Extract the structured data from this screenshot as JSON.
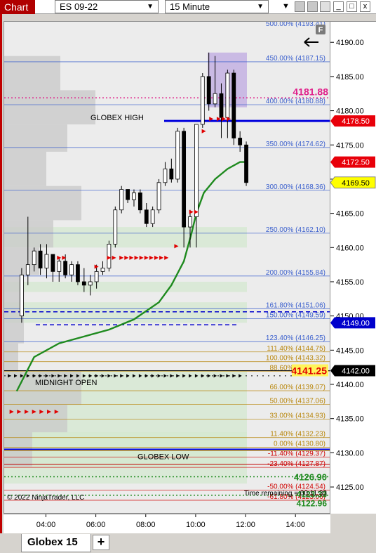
{
  "window": {
    "tag": "Chart",
    "instrument": "ES 09-22",
    "interval": "15 Minute",
    "dropdown_arrow": "▼",
    "menu_arrow": "▼",
    "controls": {
      "minimize": "_",
      "restore": "□",
      "close": "x"
    }
  },
  "tabs": [
    {
      "label": "Globex 15"
    }
  ],
  "add_tab_label": "+",
  "colors": {
    "background": "#ececec",
    "volume_profile": "#c8c8c8",
    "value_area": "#d4e8d0",
    "vwap": "#1e8a1e",
    "globex_high": "#0000dd",
    "fib_blue": "#3a5fcd",
    "fib_gold": "#b8860b",
    "fib_red": "#d00000"
  },
  "chart": {
    "header_label": "500.00% (4193.41)",
    "data_box_icon": "F",
    "back_arrow_icon": "arrow-left-icon",
    "copyright": "© 2022 NinjaTrader, LLC",
    "time_remaining": "Time remaining = 00:11:33",
    "last_price_label": "4141.25",
    "pink_price_label": "4181.88",
    "lower_green_label": "4126.90",
    "bottom_green_label_a": "4123.33",
    "bottom_green_label_b": "4122.96"
  },
  "chart_data": {
    "type": "candlestick",
    "instrument": "ES 09-22",
    "interval": "15 Minute",
    "ylim": [
      4121,
      4193
    ],
    "y_ticks": [
      4125,
      4130,
      4135,
      4140,
      4145,
      4150,
      4155,
      4160,
      4165,
      4170,
      4175,
      4180,
      4185,
      4190
    ],
    "y_tick_labels": [
      "4125.00",
      "4130.00",
      "4135.00",
      "4140.00",
      "4145.00",
      "4150.00",
      "4155.00",
      "4160.00",
      "4165.00",
      "4170.00",
      "4175.00",
      "4180.00",
      "4185.00",
      "4190.00"
    ],
    "x_ticks": [
      "04:00",
      "06:00",
      "08:00",
      "10:00",
      "12:00",
      "14:00"
    ],
    "x_tick_hours": [
      4,
      6,
      8,
      10,
      12,
      14
    ],
    "xlim_hours": [
      2.3,
      15.4
    ],
    "price_badges": [
      {
        "label": "4178.50",
        "value": 4178.5,
        "bg": "#e8000a",
        "fg": "#ffffff"
      },
      {
        "label": "4172.50",
        "value": 4172.5,
        "bg": "#e8000a",
        "fg": "#ffffff"
      },
      {
        "label": "4169.50",
        "value": 4169.5,
        "bg": "#ffff00",
        "fg": "#000000"
      },
      {
        "label": "4149.00",
        "value": 4149.0,
        "bg": "#0000cc",
        "fg": "#ffffff"
      },
      {
        "label": "4142.00",
        "value": 4142.0,
        "bg": "#000000",
        "fg": "#ffffff"
      }
    ],
    "levels": [
      {
        "label": "500.00% (4193.41)",
        "price": 4193.41,
        "color": "#3a5fcd"
      },
      {
        "label": "450.00% (4187.15)",
        "price": 4187.15,
        "color": "#3a5fcd"
      },
      {
        "label": "400.00% (4180.88)",
        "price": 4180.88,
        "color": "#3a5fcd"
      },
      {
        "label": "350.00% (4174.62)",
        "price": 4174.62,
        "color": "#3a5fcd"
      },
      {
        "label": "300.00% (4168.36)",
        "price": 4168.36,
        "color": "#3a5fcd"
      },
      {
        "label": "250.00% (4162.10)",
        "price": 4162.1,
        "color": "#3a5fcd"
      },
      {
        "label": "200.00% (4155.84)",
        "price": 4155.84,
        "color": "#3a5fcd"
      },
      {
        "label": "161.80% (4151.06)",
        "price": 4151.06,
        "color": "#3a5fcd"
      },
      {
        "label": "150.00% (4149.59)",
        "price": 4149.59,
        "color": "#3a5fcd"
      },
      {
        "label": "123.40% (4146.25)",
        "price": 4146.25,
        "color": "#3a5fcd"
      },
      {
        "label": "111.40% (4144.75)",
        "price": 4144.75,
        "color": "#b8860b"
      },
      {
        "label": "100.00% (4143.32)",
        "price": 4143.32,
        "color": "#b8860b"
      },
      {
        "label": "88.60% (4141.90)",
        "price": 4141.9,
        "color": "#b8860b"
      },
      {
        "label": "66.00% (4139.07)",
        "price": 4139.07,
        "color": "#b8860b"
      },
      {
        "label": "50.00% (4137.06)",
        "price": 4137.06,
        "color": "#b8860b"
      },
      {
        "label": "33.00% (4134.93)",
        "price": 4134.93,
        "color": "#b8860b"
      },
      {
        "label": "11.40% (4132.23)",
        "price": 4132.23,
        "color": "#b8860b"
      },
      {
        "label": "0.00% (4130.80)",
        "price": 4130.8,
        "color": "#b8860b"
      },
      {
        "label": "-11.40% (4129.37)",
        "price": 4129.37,
        "color": "#d00000"
      },
      {
        "label": "-23.40% (4127.87)",
        "price": 4127.87,
        "color": "#d00000"
      },
      {
        "label": "-50.00% (4124.54)",
        "price": 4124.54,
        "color": "#d00000"
      },
      {
        "label": "-61.80% (4123.06)",
        "price": 4123.06,
        "color": "#d00000"
      }
    ],
    "annotations": [
      {
        "label": "GLOBEX HIGH",
        "price": 4178.5
      },
      {
        "label": "MIDNIGHT OPEN",
        "price": 4141.25
      },
      {
        "label": "GLOBEX LOW",
        "price": 4130.5
      }
    ],
    "candles": [
      [
        3.0,
        4150.0,
        4157.0,
        4149.0,
        4156.0
      ],
      [
        3.25,
        4156.0,
        4164.5,
        4154.5,
        4157.5
      ],
      [
        3.5,
        4157.5,
        4160.0,
        4156.5,
        4159.5
      ],
      [
        3.75,
        4159.5,
        4160.5,
        4156.0,
        4157.0
      ],
      [
        4.0,
        4157.0,
        4160.5,
        4155.5,
        4159.0
      ],
      [
        4.25,
        4159.0,
        4159.0,
        4155.0,
        4156.5
      ],
      [
        4.5,
        4156.5,
        4158.5,
        4155.0,
        4158.0
      ],
      [
        4.75,
        4158.0,
        4159.0,
        4155.5,
        4156.0
      ],
      [
        5.0,
        4156.0,
        4158.0,
        4155.0,
        4157.5
      ],
      [
        5.25,
        4157.5,
        4158.0,
        4154.5,
        4155.0
      ],
      [
        5.5,
        4155.0,
        4157.0,
        4153.5,
        4154.5
      ],
      [
        5.75,
        4154.5,
        4156.0,
        4153.0,
        4155.0
      ],
      [
        6.0,
        4155.0,
        4157.5,
        4154.0,
        4156.5
      ],
      [
        6.25,
        4156.5,
        4158.0,
        4156.0,
        4157.0
      ],
      [
        6.5,
        4157.0,
        4161.0,
        4156.5,
        4160.5
      ],
      [
        6.75,
        4160.5,
        4166.0,
        4160.0,
        4165.5
      ],
      [
        7.0,
        4165.5,
        4169.0,
        4165.0,
        4168.5
      ],
      [
        7.25,
        4168.5,
        4168.5,
        4166.5,
        4167.0
      ],
      [
        7.5,
        4167.0,
        4168.5,
        4166.0,
        4168.0
      ],
      [
        7.75,
        4168.0,
        4168.5,
        4165.0,
        4165.5
      ],
      [
        8.0,
        4165.5,
        4166.5,
        4163.0,
        4163.5
      ],
      [
        8.25,
        4163.5,
        4166.0,
        4163.0,
        4165.5
      ],
      [
        8.5,
        4165.5,
        4170.0,
        4165.0,
        4169.5
      ],
      [
        8.75,
        4169.5,
        4172.5,
        4169.0,
        4171.5
      ],
      [
        9.0,
        4171.5,
        4173.0,
        4169.5,
        4170.0
      ],
      [
        9.25,
        4170.0,
        4177.5,
        4169.5,
        4177.0
      ],
      [
        9.5,
        4177.0,
        4177.5,
        4160.0,
        4163.0
      ],
      [
        9.75,
        4163.0,
        4165.5,
        4160.0,
        4164.5
      ],
      [
        10.0,
        4164.5,
        4178.0,
        4160.0,
        4178.0
      ],
      [
        10.25,
        4178.0,
        4185.5,
        4177.5,
        4185.0
      ],
      [
        10.5,
        4185.0,
        4188.5,
        4180.0,
        4181.0
      ],
      [
        10.75,
        4181.0,
        4188.0,
        4180.5,
        4182.5
      ],
      [
        11.0,
        4182.5,
        4184.0,
        4176.0,
        4179.0
      ],
      [
        11.25,
        4179.0,
        4186.0,
        4176.0,
        4185.5
      ],
      [
        11.5,
        4185.5,
        4186.0,
        4175.0,
        4176.0
      ],
      [
        11.75,
        4176.0,
        4177.0,
        4174.0,
        4175.0
      ],
      [
        12.0,
        4175.0,
        4175.5,
        4169.0,
        4169.5
      ]
    ],
    "vwap": [
      [
        2.8,
        4139.0
      ],
      [
        3.5,
        4144.0
      ],
      [
        4.5,
        4146.0
      ],
      [
        5.5,
        4147.0
      ],
      [
        6.5,
        4148.0
      ],
      [
        7.5,
        4149.5
      ],
      [
        8.5,
        4152.0
      ],
      [
        9.0,
        4154.5
      ],
      [
        9.5,
        4158.0
      ],
      [
        9.8,
        4162.0
      ],
      [
        10.0,
        4165.0
      ],
      [
        10.3,
        4168.0
      ],
      [
        10.75,
        4170.0
      ],
      [
        11.25,
        4171.5
      ],
      [
        11.75,
        4172.5
      ],
      [
        12.0,
        4172.5
      ]
    ]
  }
}
